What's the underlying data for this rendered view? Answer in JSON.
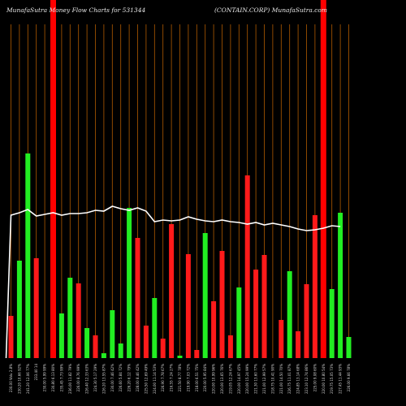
{
  "chart_data": {
    "type": "bar",
    "title_left": "MunafaSutra  Money Flow  Charts for 531344",
    "title_right": "(CONTAIN.CORP) MunafaSutra.com",
    "colors": {
      "background": "#000000",
      "up": "#22ee22",
      "down": "#ff1a1a",
      "grid": "#b05a00",
      "line": "#ffffff",
      "highlight": "#ff0000"
    },
    "highlight_bar_indices": [
      5,
      37
    ],
    "bars": [
      {
        "v": 52,
        "c": "down",
        "label": "230.00 Volu 2.8%"
      },
      {
        "v": 120,
        "c": "up",
        "label": "230.20 10.66 92%"
      },
      {
        "v": 252,
        "c": "up",
        "label": "241.20 12.06 77%"
      },
      {
        "v": 123,
        "c": "down",
        "label": "233.40 14"
      },
      {
        "v": null,
        "c": "none",
        "label": "230.00 5.99 99%"
      },
      {
        "v": null,
        "c": "none",
        "label": "230.80 6.13 80%"
      },
      {
        "v": 55,
        "c": "up",
        "label": "235.45 7.73 99%"
      },
      {
        "v": 99,
        "c": "up",
        "label": "236.00 11.82 79%"
      },
      {
        "v": 92,
        "c": "down",
        "label": "226.00 8.76 99%"
      },
      {
        "v": 37,
        "c": "up",
        "label": "226.40 12.33 63%"
      },
      {
        "v": 28,
        "c": "down",
        "label": "224.30 5.17 29%"
      },
      {
        "v": 6,
        "c": "up",
        "label": "226.20 13.55 87%"
      },
      {
        "v": 59,
        "c": "up",
        "label": "230.00 7.46 42%"
      },
      {
        "v": 18,
        "c": "up",
        "label": "226.60 5.84 72%"
      },
      {
        "v": 185,
        "c": "up",
        "label": "226.20 6.12 79%"
      },
      {
        "v": 148,
        "c": "down",
        "label": "228.00 8.46 42%"
      },
      {
        "v": 40,
        "c": "down",
        "label": "225.50 12.69 49%"
      },
      {
        "v": 74,
        "c": "up",
        "label": "224.00 11.14 53%"
      },
      {
        "v": 24,
        "c": "down",
        "label": "226.90 7.78 67%"
      },
      {
        "v": 165,
        "c": "down",
        "label": "216.55 7.24 27%"
      },
      {
        "v": 3,
        "c": "up",
        "label": "221.50 8.77 78%"
      },
      {
        "v": 128,
        "c": "down",
        "label": "219.90 7.03 72%"
      },
      {
        "v": 10,
        "c": "down",
        "label": "218.00 6.51 75%"
      },
      {
        "v": 154,
        "c": "up",
        "label": "220.00 5.95 84%"
      },
      {
        "v": 70,
        "c": "down",
        "label": "220.00 10.99 96%"
      },
      {
        "v": 132,
        "c": "down",
        "label": "220.00 13.65 76%"
      },
      {
        "v": 28,
        "c": "down",
        "label": "219.05 12.24 67%"
      },
      {
        "v": 87,
        "c": "up",
        "label": "220.00 14.97 45%"
      },
      {
        "v": 225,
        "c": "down",
        "label": "220.00 15.24 99%"
      },
      {
        "v": 109,
        "c": "down",
        "label": "221.30 13.60 77%"
      },
      {
        "v": 127,
        "c": "down",
        "label": "221.00 12.99 57%"
      },
      {
        "v": null,
        "c": "none",
        "label": "218.75 10.41 90%"
      },
      {
        "v": 47,
        "c": "down",
        "label": "221.00 14.50 70%"
      },
      {
        "v": 107,
        "c": "up",
        "label": "226.75 11.01 87%"
      },
      {
        "v": 33,
        "c": "down",
        "label": "224.85 13.14 68%"
      },
      {
        "v": 91,
        "c": "down",
        "label": "223.10 12.74 86%"
      },
      {
        "v": 176,
        "c": "down",
        "label": "225.00 9.08 60%"
      },
      {
        "v": 43,
        "c": "down",
        "label": "220.00 10.80 54%"
      },
      {
        "v": 85,
        "c": "up",
        "label": "219.75 15.05 73%"
      },
      {
        "v": 179,
        "c": "up",
        "label": "227.45 11.44 93%"
      },
      {
        "v": 26,
        "c": "up",
        "label": "226.00 9.66 78%"
      }
    ],
    "line_values": [
      176,
      179,
      183,
      175,
      177,
      179,
      176,
      178,
      178,
      179,
      182,
      181,
      187,
      184,
      182,
      185,
      181,
      168,
      170,
      169,
      170,
      174,
      171,
      169,
      168,
      170,
      168,
      167,
      165,
      167,
      164,
      166,
      164,
      162,
      159,
      157,
      158,
      160,
      163,
      162
    ],
    "line_start_value": 0
  }
}
